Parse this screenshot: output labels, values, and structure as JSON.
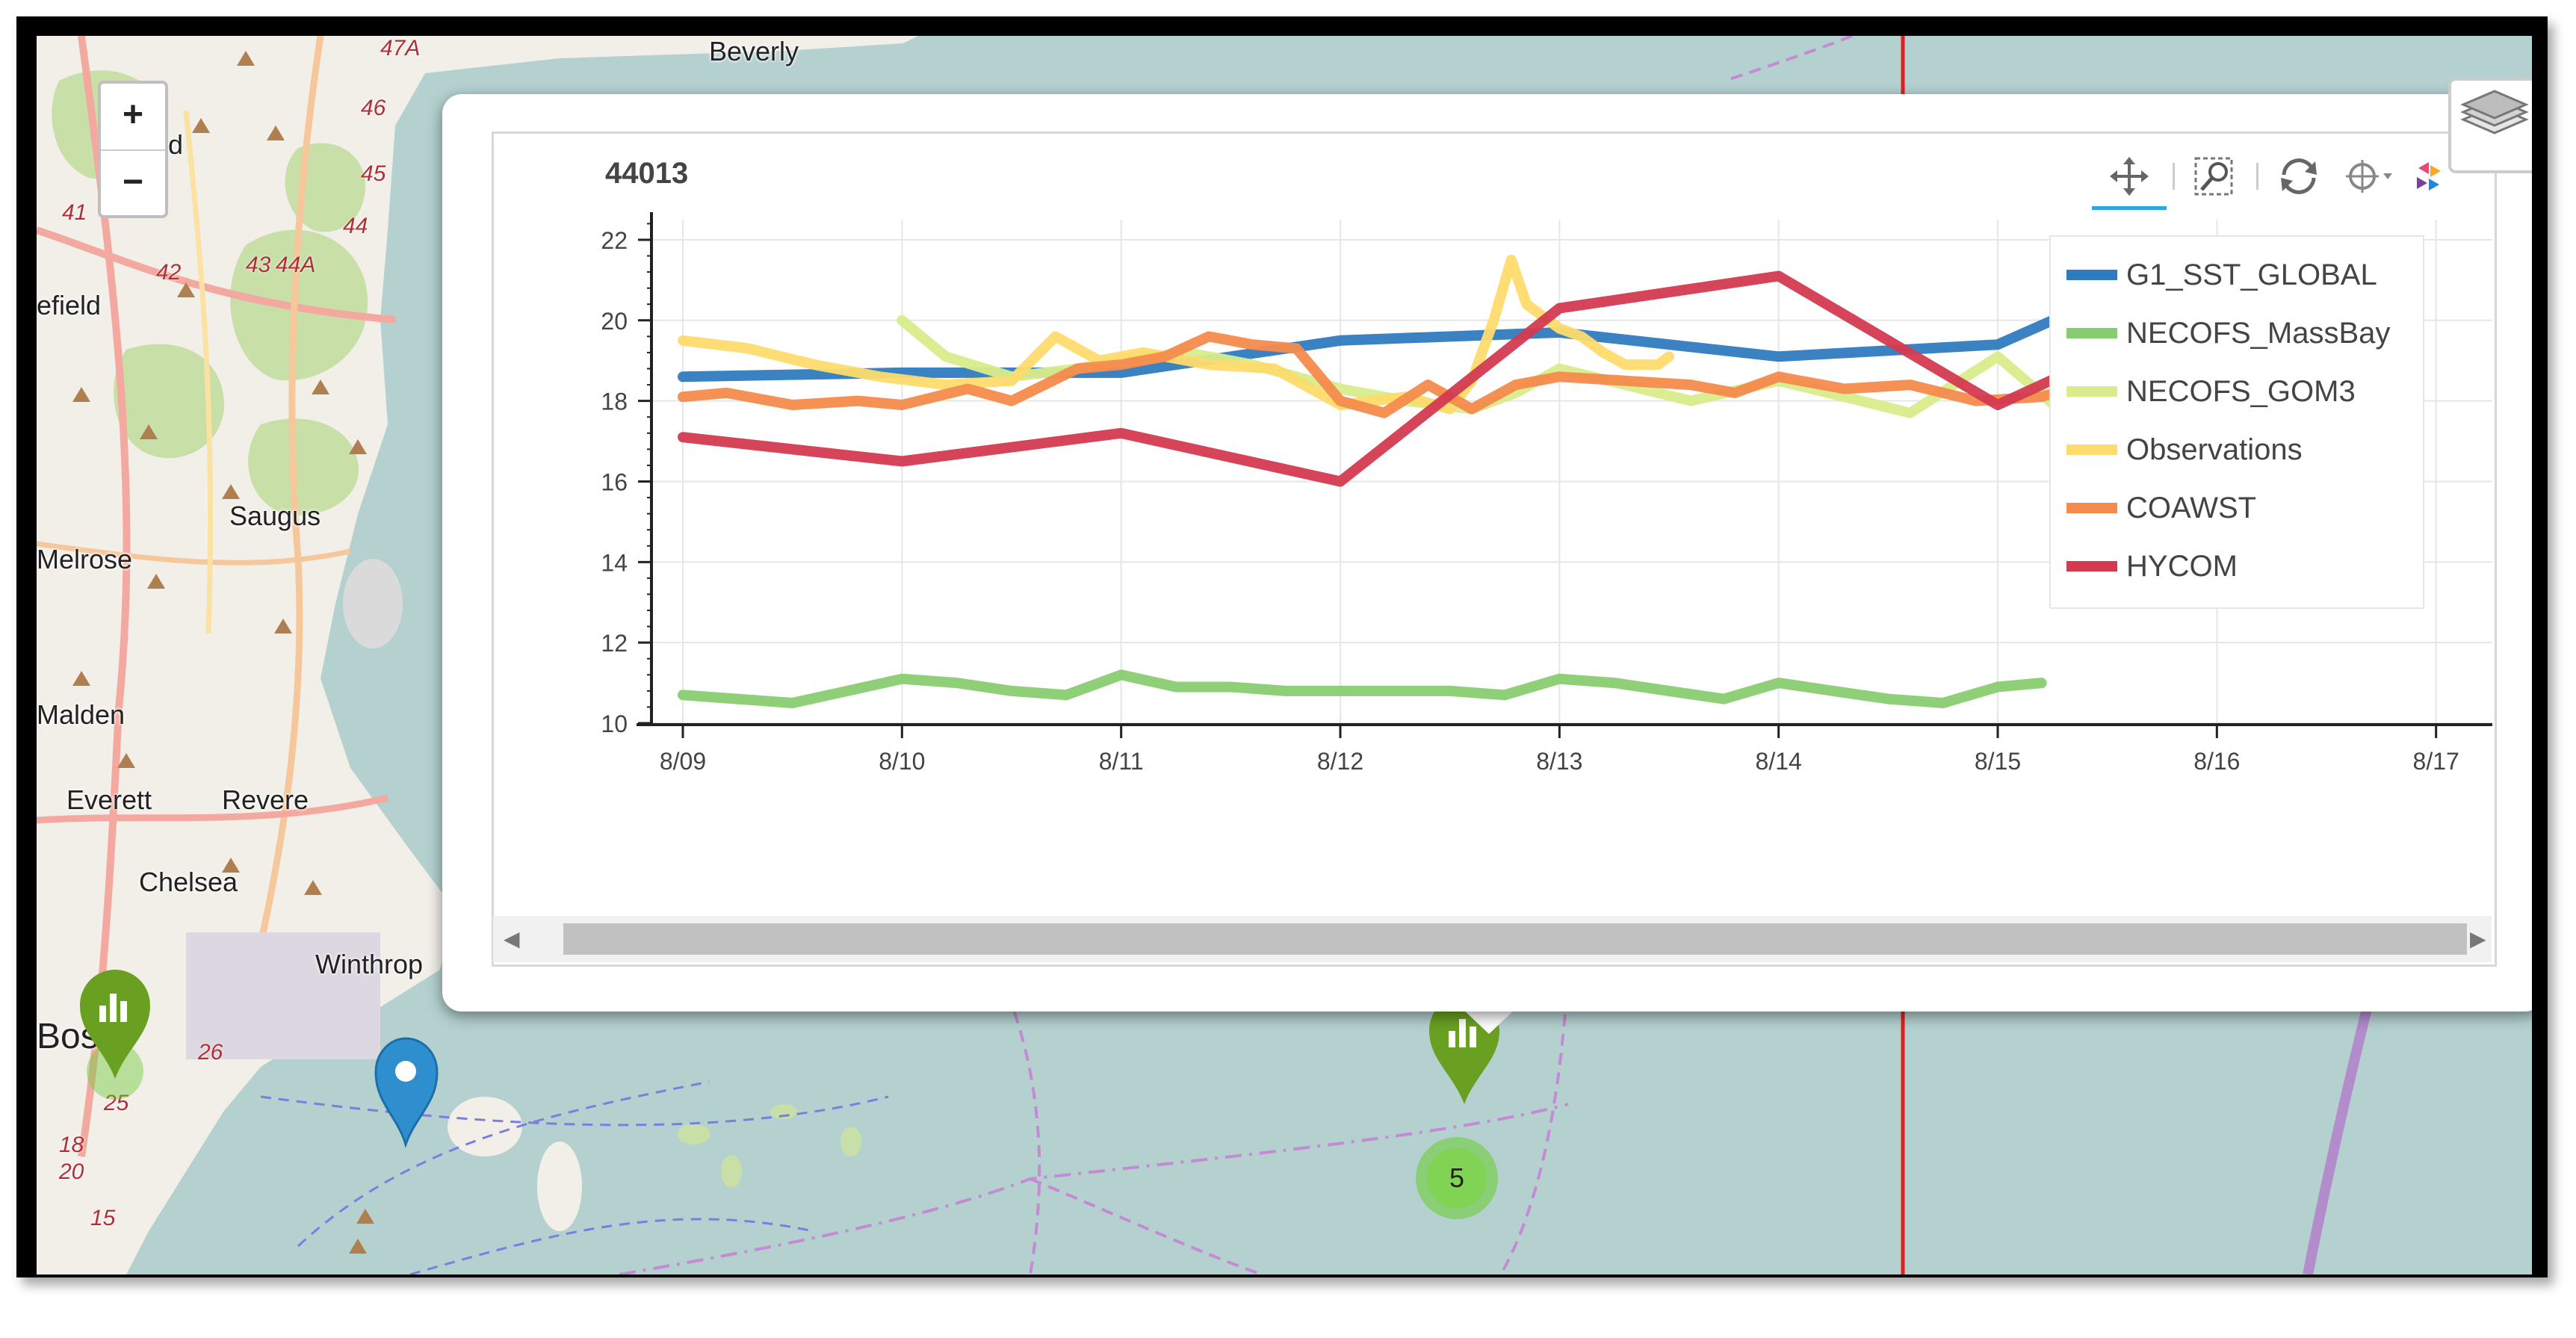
{
  "map": {
    "zoom_in_label": "+",
    "zoom_out_label": "−",
    "place_labels": [
      "Beverly",
      "nfield",
      "efield",
      "Saugus",
      "Melrose",
      "Malden",
      "Everett",
      "Revere",
      "Chelsea",
      "Winthrop",
      "Bos"
    ],
    "road_numbers": [
      "47A",
      "46",
      "45",
      "41",
      "44",
      "43",
      "44A",
      "42",
      "26",
      "25",
      "18",
      "20",
      "15"
    ],
    "cluster_count": "5",
    "colors": {
      "water": "#b4d1d0",
      "land": "#f2efe9",
      "park": "#c8dfa8",
      "marker_green": "#6aa022",
      "marker_blue": "#2f8fce"
    }
  },
  "popup": {
    "chart_title": "44013",
    "toolbar": {
      "icons": [
        "pan-icon",
        "box-zoom-icon",
        "reset-icon",
        "crosshair-icon",
        "bokeh-logo-icon"
      ],
      "active_tool": "pan"
    },
    "scroll_left": "◀",
    "scroll_right": "▶"
  },
  "chart_data": {
    "type": "line",
    "title": "44013",
    "xlabel": "",
    "ylabel": "",
    "x_ticks": [
      "8/09",
      "8/10",
      "8/11",
      "8/12",
      "8/13",
      "8/14",
      "8/15",
      "8/16",
      "8/17"
    ],
    "y_ticks": [
      "10",
      "12",
      "14",
      "16",
      "18",
      "20",
      "22"
    ],
    "xlim": [
      0,
      8.4
    ],
    "ylim": [
      10,
      22.5
    ],
    "grid": true,
    "legend_position": "top-right",
    "series": [
      {
        "name": "G1_SST_GLOBAL",
        "color": "#2f7bbf",
        "points": [
          [
            0,
            18.6
          ],
          [
            1,
            18.7
          ],
          [
            2,
            18.7
          ],
          [
            3,
            19.5
          ],
          [
            4,
            19.7
          ],
          [
            5,
            19.1
          ],
          [
            6,
            19.4
          ],
          [
            7,
            21.8
          ]
        ]
      },
      {
        "name": "NECOFS_MassBay",
        "color": "#88cc70",
        "points": [
          [
            0,
            10.7
          ],
          [
            0.25,
            10.6
          ],
          [
            0.5,
            10.5
          ],
          [
            0.75,
            10.8
          ],
          [
            1,
            11.1
          ],
          [
            1.25,
            11.0
          ],
          [
            1.5,
            10.8
          ],
          [
            1.75,
            10.7
          ],
          [
            2,
            11.2
          ],
          [
            2.25,
            10.9
          ],
          [
            2.5,
            10.9
          ],
          [
            2.75,
            10.8
          ],
          [
            3,
            10.8
          ],
          [
            3.25,
            10.8
          ],
          [
            3.5,
            10.8
          ],
          [
            3.75,
            10.7
          ],
          [
            4,
            11.1
          ],
          [
            4.25,
            11.0
          ],
          [
            4.5,
            10.8
          ],
          [
            4.75,
            10.6
          ],
          [
            5,
            11.0
          ],
          [
            5.25,
            10.8
          ],
          [
            5.5,
            10.6
          ],
          [
            5.75,
            10.5
          ],
          [
            6,
            10.9
          ],
          [
            6.2,
            11.0
          ]
        ]
      },
      {
        "name": "NECOFS_GOM3",
        "color": "#d9ec8b",
        "points": [
          [
            1,
            20.0
          ],
          [
            1.2,
            19.1
          ],
          [
            1.5,
            18.6
          ],
          [
            1.8,
            18.8
          ],
          [
            2,
            19.0
          ],
          [
            2.3,
            19.2
          ],
          [
            2.6,
            18.9
          ],
          [
            3,
            18.3
          ],
          [
            3.3,
            18.0
          ],
          [
            3.6,
            17.8
          ],
          [
            3.8,
            18.2
          ],
          [
            4,
            18.8
          ],
          [
            4.3,
            18.4
          ],
          [
            4.6,
            18.0
          ],
          [
            5,
            18.5
          ],
          [
            5.3,
            18.1
          ],
          [
            5.6,
            17.7
          ],
          [
            6,
            19.1
          ],
          [
            6.3,
            17.7
          ],
          [
            6.5,
            17.1
          ]
        ]
      },
      {
        "name": "Observations",
        "color": "#fddb6d",
        "points": [
          [
            0,
            19.5
          ],
          [
            0.3,
            19.3
          ],
          [
            0.6,
            18.9
          ],
          [
            0.9,
            18.6
          ],
          [
            1.2,
            18.4
          ],
          [
            1.5,
            18.5
          ],
          [
            1.7,
            19.6
          ],
          [
            1.9,
            19.0
          ],
          [
            2.1,
            19.2
          ],
          [
            2.4,
            18.9
          ],
          [
            2.7,
            18.8
          ],
          [
            3,
            17.9
          ],
          [
            3.3,
            18.1
          ],
          [
            3.5,
            17.8
          ],
          [
            3.6,
            18.5
          ],
          [
            3.7,
            20.0
          ],
          [
            3.78,
            21.5
          ],
          [
            3.85,
            20.4
          ],
          [
            4,
            19.8
          ],
          [
            4.1,
            19.6
          ],
          [
            4.2,
            19.2
          ],
          [
            4.3,
            18.9
          ],
          [
            4.45,
            18.9
          ],
          [
            4.5,
            19.1
          ]
        ]
      },
      {
        "name": "COAWST",
        "color": "#f58b4c",
        "points": [
          [
            0,
            18.1
          ],
          [
            0.2,
            18.2
          ],
          [
            0.5,
            17.9
          ],
          [
            0.8,
            18.0
          ],
          [
            1,
            17.9
          ],
          [
            1.3,
            18.3
          ],
          [
            1.5,
            18.0
          ],
          [
            1.8,
            18.8
          ],
          [
            2,
            18.9
          ],
          [
            2.2,
            19.1
          ],
          [
            2.4,
            19.6
          ],
          [
            2.6,
            19.4
          ],
          [
            2.8,
            19.3
          ],
          [
            3,
            18.0
          ],
          [
            3.2,
            17.7
          ],
          [
            3.4,
            18.4
          ],
          [
            3.6,
            17.8
          ],
          [
            3.8,
            18.4
          ],
          [
            4,
            18.6
          ],
          [
            4.3,
            18.5
          ],
          [
            4.6,
            18.4
          ],
          [
            4.8,
            18.2
          ],
          [
            5,
            18.6
          ],
          [
            5.3,
            18.3
          ],
          [
            5.6,
            18.4
          ],
          [
            5.9,
            18.0
          ],
          [
            6.2,
            18.1
          ],
          [
            6.5,
            18.6
          ]
        ]
      },
      {
        "name": "HYCOM",
        "color": "#d33a4f",
        "points": [
          [
            0,
            17.1
          ],
          [
            1,
            16.5
          ],
          [
            2,
            17.2
          ],
          [
            3,
            16.0
          ],
          [
            4,
            20.3
          ],
          [
            5,
            21.1
          ],
          [
            6,
            17.9
          ],
          [
            7,
            20.4
          ]
        ]
      }
    ]
  }
}
